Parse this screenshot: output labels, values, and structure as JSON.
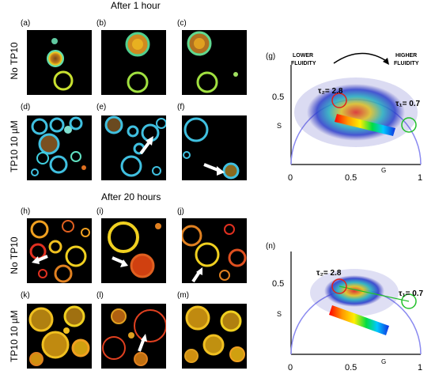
{
  "top_section": {
    "title": "After 1 hour",
    "row1_label": "No TP10",
    "row2_label": "TP10 10 µM",
    "panels": [
      "(a)",
      "(b)",
      "(c)",
      "(d)",
      "(e)",
      "(f)"
    ]
  },
  "bottom_section": {
    "title": "After 20 hours",
    "row1_label": "No TP10",
    "row2_label": "TP10 10 µM",
    "panels": [
      "(h)",
      "(i)",
      "(j)",
      "(k)",
      "(l)",
      "(m)"
    ]
  },
  "phasor_g": {
    "label": "(g)",
    "lower_fluidity": [
      "LOWER",
      "FLUIDITY"
    ],
    "higher_fluidity": [
      "HIGHER",
      "FLUIDITY"
    ],
    "tau2_label": "τ₂= 2.8",
    "tau1_label": "τ₁= 0.7",
    "y_axis_label": "S",
    "x_axis_label": "G",
    "y_tick": "0.5",
    "x_ticks": [
      "0",
      "0.5",
      "1"
    ]
  },
  "phasor_n": {
    "label": "(n)",
    "tau2_label": "τ₂= 2.8",
    "tau1_label": "τ₁= 0.7",
    "y_axis_label": "S",
    "x_axis_label": "G",
    "y_tick": "0.5",
    "x_ticks": [
      "0",
      "0.5",
      "1"
    ]
  },
  "colors": {
    "panel_background": "#000000",
    "semicircle": "#8a8af0",
    "tau2_circle": "#e0201a",
    "tau1_circle": "#22c02a",
    "cloud": "#3a3ab8"
  }
}
